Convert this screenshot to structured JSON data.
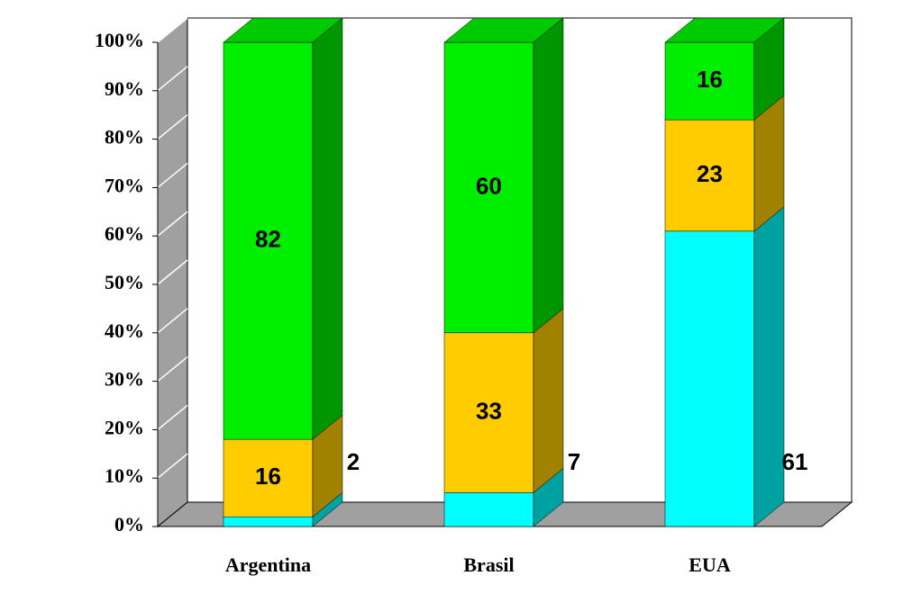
{
  "chart_data": {
    "type": "bar",
    "stacked": true,
    "categories": [
      "Argentina",
      "Brasil",
      "EUA"
    ],
    "series": [
      {
        "color": "#00ffff",
        "values": [
          2,
          7,
          61
        ]
      },
      {
        "color": "#ffcc00",
        "values": [
          16,
          33,
          23
        ]
      },
      {
        "color": "#00ee00",
        "values": [
          82,
          60,
          16
        ]
      }
    ],
    "ylim": [
      0,
      100
    ],
    "yticks": [
      {
        "value": 0,
        "label": "0%"
      },
      {
        "value": 10,
        "label": "10%"
      },
      {
        "value": 20,
        "label": "20%"
      },
      {
        "value": 30,
        "label": "30%"
      },
      {
        "value": 40,
        "label": "40%"
      },
      {
        "value": 50,
        "label": "50%"
      },
      {
        "value": 60,
        "label": "60%"
      },
      {
        "value": 70,
        "label": "70%"
      },
      {
        "value": 80,
        "label": "80%"
      },
      {
        "value": 90,
        "label": "90%"
      },
      {
        "value": 100,
        "label": "100%"
      }
    ],
    "grid": true
  }
}
